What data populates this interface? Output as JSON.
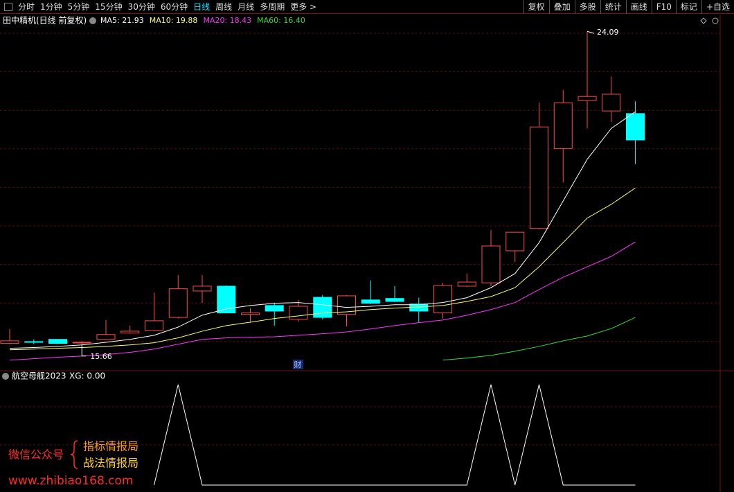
{
  "toolbar": {
    "tabs": [
      "分时",
      "1分钟",
      "5分钟",
      "15分钟",
      "30分钟",
      "60分钟",
      "日线",
      "周线",
      "月线",
      "多周期",
      "更多 >"
    ],
    "active_tab": 6,
    "tools": [
      "复权",
      "叠加",
      "多股",
      "统计",
      "画线",
      "F10",
      "标记",
      "+自选"
    ]
  },
  "chart_data": [
    {
      "type": "candlestick",
      "title": "田中精机(日线 前复权)",
      "up_color": "#ff4a4a",
      "down_color": "#00ffff",
      "ylim": [
        15.06,
        24.56
      ],
      "open": [
        15.7,
        15.75,
        15.81,
        15.72,
        15.81,
        15.98,
        16.05,
        16.4,
        17.11,
        17.24,
        16.48,
        16.72,
        16.35,
        16.94,
        16.48,
        16.87,
        16.91,
        16.76,
        16.52,
        17.24,
        17.33,
        18.19,
        18.79,
        20.94,
        22.23,
        21.95,
        21.88
      ],
      "high": [
        16.09,
        15.81,
        15.81,
        15.77,
        16.33,
        16.18,
        17.07,
        17.54,
        17.54,
        17.26,
        16.65,
        16.8,
        16.87,
        17.0,
        17.0,
        17.39,
        17.24,
        16.93,
        17.33,
        17.58,
        18.75,
        18.69,
        22.17,
        22.51,
        24.09,
        22.88,
        22.21
      ],
      "low": [
        15.68,
        15.68,
        15.68,
        15.66,
        15.81,
        15.96,
        16.03,
        16.37,
        16.79,
        16.52,
        16.26,
        16.18,
        16.29,
        16.35,
        16.16,
        16.76,
        16.81,
        16.27,
        16.37,
        17.22,
        17.24,
        17.89,
        18.77,
        20.03,
        21.48,
        21.65,
        20.52
      ],
      "close": [
        15.77,
        15.73,
        15.7,
        15.73,
        15.94,
        16.03,
        16.31,
        17.17,
        17.24,
        16.52,
        16.52,
        16.57,
        16.7,
        16.4,
        16.98,
        16.78,
        16.83,
        16.57,
        17.26,
        17.35,
        18.32,
        18.69,
        21.52,
        22.17,
        22.34,
        22.4,
        21.17
      ],
      "series": [
        {
          "label": "MA5: 21.93",
          "color": "#ffffff",
          "values": [
            15.57,
            15.59,
            15.62,
            15.66,
            15.73,
            15.81,
            15.92,
            16.14,
            16.46,
            16.63,
            16.72,
            16.78,
            16.8,
            16.74,
            16.67,
            16.7,
            16.74,
            16.74,
            16.8,
            16.93,
            17.2,
            17.58,
            18.41,
            19.53,
            20.65,
            21.48,
            21.93
          ]
        },
        {
          "label": "MA10: 19.88",
          "color": "#ffff66",
          "values": [
            15.53,
            15.55,
            15.57,
            15.59,
            15.62,
            15.66,
            15.72,
            15.85,
            16.03,
            16.18,
            16.27,
            16.37,
            16.44,
            16.52,
            16.55,
            16.61,
            16.65,
            16.68,
            16.72,
            16.83,
            16.96,
            17.2,
            17.76,
            18.41,
            19.07,
            19.44,
            19.88
          ]
        },
        {
          "label": "MA20: 18.43",
          "color": "#ff33ff",
          "values": [
            15.25,
            15.29,
            15.33,
            15.36,
            15.4,
            15.46,
            15.55,
            15.68,
            15.81,
            15.85,
            15.87,
            15.88,
            15.92,
            15.96,
            16.01,
            16.09,
            16.18,
            16.26,
            16.33,
            16.46,
            16.61,
            16.8,
            17.15,
            17.48,
            17.76,
            18.04,
            18.43
          ]
        },
        {
          "label": "MA60: 16.40",
          "color": "#33dd33",
          "values": [
            null,
            null,
            null,
            null,
            null,
            null,
            null,
            null,
            null,
            null,
            null,
            null,
            null,
            null,
            null,
            null,
            null,
            null,
            15.25,
            15.31,
            15.38,
            15.49,
            15.62,
            15.77,
            15.9,
            16.1,
            16.4
          ]
        }
      ],
      "badge": "财"
    },
    {
      "type": "line",
      "title": "航空母舰2023",
      "value_label": "XG: 0.00",
      "color": "#ffffff",
      "values": [
        null,
        null,
        null,
        null,
        null,
        null,
        0,
        1,
        0,
        0,
        0,
        0,
        0,
        0,
        0,
        0,
        0,
        0,
        0,
        0,
        1,
        0,
        1,
        0,
        0,
        0,
        0
      ]
    }
  ],
  "watermark": {
    "account": "微信公众号",
    "names": [
      "指标情报局",
      "战法情报局"
    ],
    "site": "www.zhibiao168.com"
  }
}
